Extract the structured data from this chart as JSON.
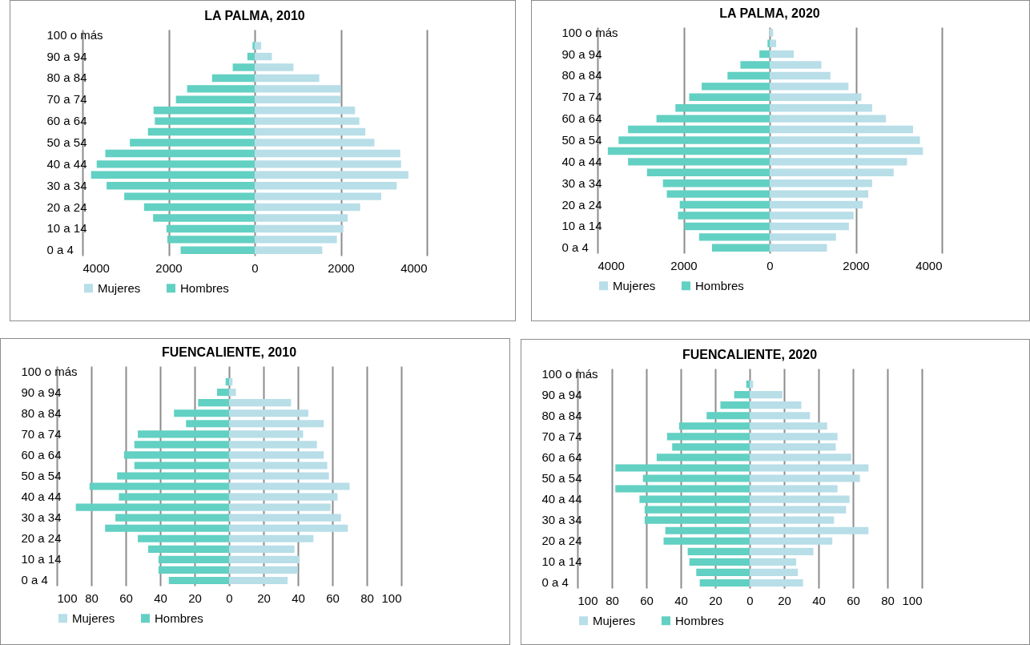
{
  "chart_data": [
    {
      "type": "bar",
      "orientation": "horizontal",
      "stacked": true,
      "title": "LA PALMA, 2010",
      "categories": [
        "100 o más",
        null,
        "90 a 94",
        null,
        "80 a 84",
        null,
        "70 a 74",
        null,
        "60 a 64",
        null,
        "50 a 54",
        null,
        "40 a 44",
        null,
        "30 a 34",
        null,
        "20 a 24",
        null,
        "10 a 14",
        null,
        "0 a 4"
      ],
      "series": [
        {
          "name": "Mujeres",
          "color": "#b8dee8",
          "values": [
            null,
            150,
            400,
            900,
            1500,
            2000,
            1990,
            2330,
            2430,
            2570,
            2780,
            3380,
            3400,
            3570,
            3300,
            2940,
            2450,
            2160,
            2060,
            1910,
            1570
          ]
        },
        {
          "name": "Hombres",
          "color": "#62d0c2",
          "values": [
            null,
            -50,
            -170,
            -510,
            -990,
            -1570,
            -1830,
            -2350,
            -2320,
            -2480,
            -2900,
            -3470,
            -3670,
            -3800,
            -3440,
            -3030,
            -2570,
            -2360,
            -2050,
            -2030,
            -1720
          ]
        }
      ],
      "xlim": [
        -4000,
        4000
      ],
      "xticks": [
        {
          "value": -4000,
          "label": "4000"
        },
        {
          "value": -2000,
          "label": "2000"
        },
        0,
        2000,
        4000
      ],
      "grid": "x",
      "legend": "bottom"
    },
    {
      "type": "bar",
      "orientation": "horizontal",
      "stacked": true,
      "title": "LA PALMA, 2020",
      "categories": [
        "100 o más",
        null,
        "90 a 94",
        null,
        "80 a 84",
        null,
        "70 a 74",
        null,
        "60 a 64",
        null,
        "50 a 54",
        null,
        "40 a 44",
        null,
        "30 a 34",
        null,
        "20 a 24",
        null,
        "10 a 14",
        null,
        "0 a 4"
      ],
      "series": [
        {
          "name": "Mujeres",
          "color": "#b8dee8",
          "values": [
            80,
            150,
            560,
            1200,
            1410,
            1830,
            2130,
            2380,
            2700,
            3330,
            3490,
            3560,
            3190,
            2880,
            2380,
            2290,
            2160,
            1950,
            1840,
            1540,
            1330
          ]
        },
        {
          "name": "Hombres",
          "color": "#62d0c2",
          "values": [
            null,
            -50,
            -240,
            -680,
            -980,
            -1580,
            -1870,
            -2190,
            -2630,
            -3290,
            -3510,
            -3760,
            -3290,
            -2850,
            -2480,
            -2390,
            -2090,
            -2130,
            -1980,
            -1640,
            -1340
          ]
        }
      ],
      "xlim": [
        -4000,
        4000
      ],
      "xticks": [
        {
          "value": -4000,
          "label": "4000"
        },
        {
          "value": -2000,
          "label": "2000"
        },
        0,
        2000,
        4000
      ],
      "grid": "x",
      "legend": "bottom"
    },
    {
      "type": "bar",
      "orientation": "horizontal",
      "stacked": true,
      "title": "FUENCALIENTE, 2010",
      "categories": [
        "100 o más",
        null,
        "90 a 94",
        null,
        "80 a 84",
        null,
        "70 a 74",
        null,
        "60 a 64",
        null,
        "50 a 54",
        null,
        "40 a 44",
        null,
        "30 a 34",
        null,
        "20 a 24",
        null,
        "10 a 14",
        null,
        "0 a 4"
      ],
      "series": [
        {
          "name": "Mujeres",
          "color": "#b8dee8",
          "values": [
            0,
            2,
            4,
            36,
            46,
            55,
            43,
            51,
            55,
            57,
            58,
            70,
            63,
            59,
            65,
            69,
            49,
            38,
            41,
            40,
            34
          ]
        },
        {
          "name": "Hombres",
          "color": "#62d0c2",
          "values": [
            0,
            -2,
            -7,
            -18,
            -32,
            -25,
            -53,
            -55,
            -61,
            -55,
            -65,
            -81,
            -64,
            -89,
            -66,
            -72,
            -53,
            -47,
            -41,
            -41,
            -35
          ]
        }
      ],
      "xlim": [
        -100,
        100
      ],
      "xticks": [
        {
          "value": -100,
          "label": "100"
        },
        {
          "value": -80,
          "label": "80"
        },
        {
          "value": -60,
          "label": "60"
        },
        {
          "value": -40,
          "label": "40"
        },
        {
          "value": -20,
          "label": "20"
        },
        0,
        20,
        40,
        60,
        80,
        100
      ],
      "grid": "x",
      "legend": "bottom"
    },
    {
      "type": "bar",
      "orientation": "horizontal",
      "stacked": true,
      "title": "FUENCALIENTE, 2020",
      "categories": [
        "100 o más",
        null,
        "90 a 94",
        null,
        "80 a 84",
        null,
        "70 a 74",
        null,
        "60 a 64",
        null,
        "50 a 54",
        null,
        "40 a 44",
        null,
        "30 a 34",
        null,
        "20 a 24",
        null,
        "10 a 14",
        null,
        "0 a 4"
      ],
      "series": [
        {
          "name": "Mujeres",
          "color": "#b8dee8",
          "values": [
            0,
            2,
            19,
            30,
            35,
            45,
            51,
            50,
            59,
            69,
            64,
            51,
            58,
            56,
            49,
            69,
            48,
            37,
            27,
            28,
            31
          ]
        },
        {
          "name": "Hombres",
          "color": "#62d0c2",
          "values": [
            0,
            -2,
            -9,
            -17,
            -25,
            -41,
            -48,
            -45,
            -54,
            -78,
            -62,
            -78,
            -64,
            -61,
            -61,
            -49,
            -50,
            -36,
            -35,
            -31,
            -29
          ]
        }
      ],
      "xlim": [
        -100,
        100
      ],
      "xticks": [
        {
          "value": -100,
          "label": "100"
        },
        {
          "value": -80,
          "label": "80"
        },
        {
          "value": -60,
          "label": "60"
        },
        {
          "value": -40,
          "label": "40"
        },
        {
          "value": -20,
          "label": "20"
        },
        0,
        20,
        40,
        60,
        80,
        100
      ],
      "grid": "x",
      "legend": "bottom"
    }
  ]
}
